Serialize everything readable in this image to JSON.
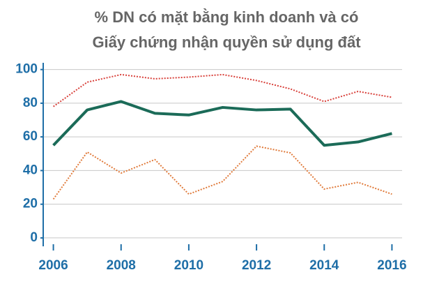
{
  "chart_data": {
    "type": "line",
    "title": [
      "% DN có mặt bằng kinh doanh và có",
      "Giấy chứng nhận quyền sử dụng đất"
    ],
    "x": [
      2006,
      2007,
      2008,
      2009,
      2010,
      2011,
      2012,
      2013,
      2014,
      2015,
      2016
    ],
    "series": [
      {
        "color": "#d8403a",
        "style": "dotted",
        "values": [
          78,
          92.5,
          97,
          94.5,
          95.5,
          97,
          93.5,
          88.5,
          81,
          87,
          83.5
        ]
      },
      {
        "color": "#1b6b58",
        "style": "solid",
        "values": [
          55,
          76,
          81,
          74,
          73,
          77.5,
          76,
          76.5,
          55,
          57,
          62
        ]
      },
      {
        "color": "#e07a3a",
        "style": "dotted",
        "values": [
          23,
          51,
          38.5,
          46.5,
          26,
          33.5,
          54.5,
          50.5,
          29,
          33,
          26
        ]
      }
    ],
    "xlim": [
      2005.7,
      2016.3
    ],
    "xticks": [
      2006,
      2008,
      2010,
      2012,
      2014,
      2016
    ],
    "ylim": [
      -5,
      104
    ],
    "yticks": [
      0,
      20,
      40,
      60,
      80,
      100
    ],
    "grid": true
  }
}
